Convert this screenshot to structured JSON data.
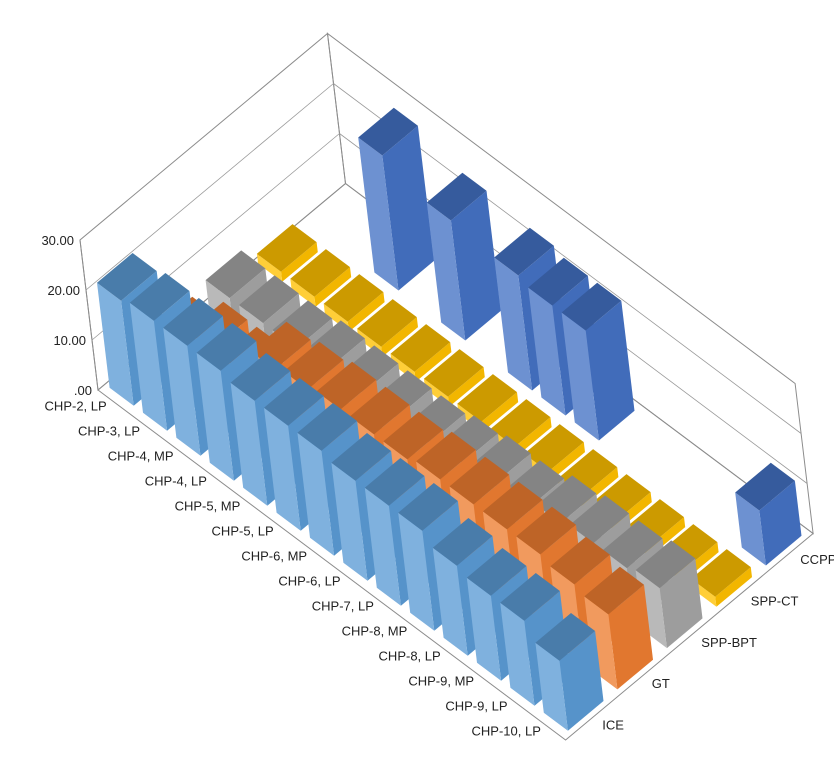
{
  "chart_data": {
    "type": "bar",
    "subtype": "3d-column",
    "title": "",
    "zlim": [
      0,
      30
    ],
    "z_ticks": [
      ".00",
      "10.00",
      "20.00",
      "30.00"
    ],
    "grid": true,
    "legend": "none",
    "categories": [
      "CHP-2, LP",
      "CHP-3, LP",
      "CHP-4, MP",
      "CHP-4, LP",
      "CHP-5, MP",
      "CHP-5, LP",
      "CHP-6, MP",
      "CHP-6, LP",
      "CHP-7, LP",
      "CHP-8, MP",
      "CHP-8, LP",
      "CHP-9, MP",
      "CHP-9, LP",
      "CHP-10, LP"
    ],
    "series_labels": [
      "ICE",
      "GT",
      "SPP-BPT",
      "SPP-CT",
      "CCPP"
    ],
    "series_colors": [
      "#5b9bd5",
      "#ed7d31",
      "#a5a5a5",
      "#ffc000",
      "#4472c4"
    ],
    "series": [
      {
        "name": "ICE",
        "values": [
          21,
          22,
          22,
          22,
          21,
          21,
          21,
          20,
          20,
          20,
          18,
          17,
          17,
          14
        ]
      },
      {
        "name": "GT",
        "values": [
          4,
          8,
          8,
          14,
          15,
          16,
          16,
          16,
          17,
          17,
          17,
          17,
          16,
          15
        ]
      },
      {
        "name": "SPP-BPT",
        "values": [
          5,
          5,
          5,
          6,
          6,
          6,
          6,
          7,
          8,
          8,
          10,
          11,
          11,
          12
        ]
      },
      {
        "name": "SPP-CT",
        "values": [
          2,
          2,
          2,
          2,
          2,
          2,
          2,
          2,
          2,
          2,
          2,
          2,
          2,
          2
        ]
      },
      {
        "name": "CCPP",
        "values": [
          0,
          0,
          27,
          0,
          24,
          0,
          23,
          22,
          22,
          0,
          0,
          0,
          0,
          11
        ]
      }
    ]
  }
}
